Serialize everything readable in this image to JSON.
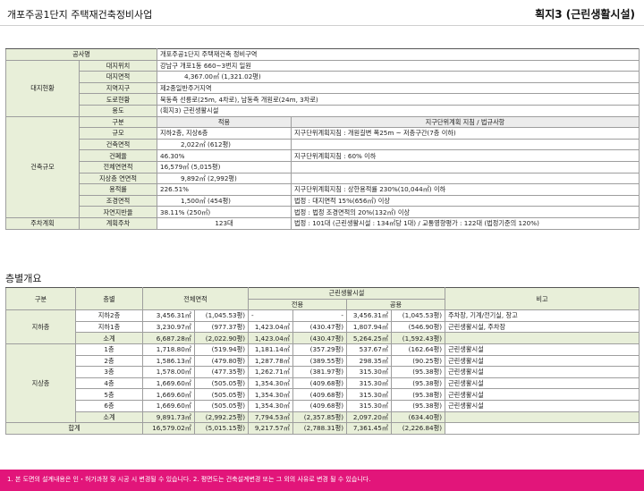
{
  "header": {
    "title": "개포주공1단지 주택재건축정비사업",
    "badge": "획지3 (근린생활시설)"
  },
  "t1": {
    "project_label": "공사명",
    "project_value": "개포주공1단지 주택재건축 정비구역",
    "site_group": "대지현황",
    "site_rows": [
      {
        "label": "대지위치",
        "value": "강남구 개포1동 660~3번지 일원"
      },
      {
        "label": "대지면적",
        "value": "4,367.00㎡ (1,321.02평)"
      },
      {
        "label": "지역지구",
        "value": "제2종일반주거지역"
      },
      {
        "label": "도로현황",
        "value": "북동측 선릉로(25m, 4차로), 남동측 개원로(24m, 3차로)"
      },
      {
        "label": "용도",
        "value": "(획지3) 근린생활시설"
      }
    ],
    "bld_group": "건축규모",
    "col_head": {
      "item": "구분",
      "apply": "적용",
      "rule": "지구단위계획 지침 / 법규사항"
    },
    "bld_rows": [
      {
        "label": "규모",
        "apply": "지하2층, 지상6층",
        "rule": "지구단위계획지침 : 개원길변 폭25m ~ 저층구간(7층 이하)"
      },
      {
        "label": "건축면적",
        "apply": "2,022㎡ (612평)",
        "rule": ""
      },
      {
        "label": "건폐율",
        "apply": "46.30%",
        "rule": "지구단위계획지침 : 60% 이하"
      },
      {
        "label": "전체연면적",
        "apply": "16,579㎡ (5,015평)",
        "rule": ""
      },
      {
        "label": "지상층 연면적",
        "apply": "9,892㎡ (2,992평)",
        "rule": ""
      },
      {
        "label": "용적률",
        "apply": "226.51%",
        "rule": "지구단위계획지침 : 상한용적률 230%(10,044㎡) 이하"
      },
      {
        "label": "조경면적",
        "apply": "1,500㎡ (454평)",
        "rule": "법정 : 대지면적 15%(656㎡) 이상"
      },
      {
        "label": "자연지반율",
        "apply": "38.11% (250㎡)",
        "rule": "법정 : 법정 조경면적의 20%(132㎡) 이상"
      }
    ],
    "parking": {
      "group": "주차계획",
      "label": "계획주차",
      "apply": "123대",
      "rule": "법정 : 101대 (근린생활시설 : 134㎡당 1대)   /  교통영향평가 : 122대 (법정기준의 120%)"
    }
  },
  "t2": {
    "section_title": "층별개요",
    "head": {
      "kind": "구분",
      "floor": "층별",
      "total": "전체면적",
      "nbh": "근린생활시설",
      "private": "전용",
      "common": "공용",
      "note": "비고"
    },
    "basement_group": "지하층",
    "ground_group": "지상층",
    "basement_rows": [
      {
        "floor": "지하2층",
        "t1": "3,456.31㎡",
        "t2": "(1,045.53평)",
        "p1": "-",
        "p2": "-",
        "c1": "3,456.31㎡",
        "c2": "(1,045.53평)",
        "note": "주차장, 기계/전기실, 창고"
      },
      {
        "floor": "지하1층",
        "t1": "3,230.97㎡",
        "t2": "(977.37평)",
        "p1": "1,423.04㎡",
        "p2": "(430.47평)",
        "c1": "1,807.94㎡",
        "c2": "(546.90평)",
        "note": "근린생활시설, 주차장"
      },
      {
        "floor": "소계",
        "t1": "6,687.28㎡",
        "t2": "(2,022.90평)",
        "p1": "1,423.04㎡",
        "p2": "(430.47평)",
        "c1": "5,264.25㎡",
        "c2": "(1,592.43평)",
        "note": ""
      }
    ],
    "ground_rows": [
      {
        "floor": "1층",
        "t1": "1,718.80㎡",
        "t2": "(519.94평)",
        "p1": "1,181.14㎡",
        "p2": "(357.29평)",
        "c1": "537.67㎡",
        "c2": "(162.64평)",
        "note": "근린생활시설"
      },
      {
        "floor": "2층",
        "t1": "1,586.13㎡",
        "t2": "(479.80평)",
        "p1": "1,287.78㎡",
        "p2": "(389.55평)",
        "c1": "298.35㎡",
        "c2": "(90.25평)",
        "note": "근린생활시설"
      },
      {
        "floor": "3층",
        "t1": "1,578.00㎡",
        "t2": "(477.35평)",
        "p1": "1,262.71㎡",
        "p2": "(381.97평)",
        "c1": "315.30㎡",
        "c2": "(95.38평)",
        "note": "근린생활시설"
      },
      {
        "floor": "4층",
        "t1": "1,669.60㎡",
        "t2": "(505.05평)",
        "p1": "1,354.30㎡",
        "p2": "(409.68평)",
        "c1": "315.30㎡",
        "c2": "(95.38평)",
        "note": "근린생활시설"
      },
      {
        "floor": "5층",
        "t1": "1,669.60㎡",
        "t2": "(505.05평)",
        "p1": "1,354.30㎡",
        "p2": "(409.68평)",
        "c1": "315.30㎡",
        "c2": "(95.38평)",
        "note": "근린생활시설"
      },
      {
        "floor": "6층",
        "t1": "1,669.60㎡",
        "t2": "(505.05평)",
        "p1": "1,354.30㎡",
        "p2": "(409.68평)",
        "c1": "315.30㎡",
        "c2": "(95.38평)",
        "note": "근린생활시설"
      },
      {
        "floor": "소계",
        "t1": "9,891.73㎡",
        "t2": "(2,992.25평)",
        "p1": "7,794.53㎡",
        "p2": "(2,357.85평)",
        "c1": "2,097.20㎡",
        "c2": "(634.40평)",
        "note": ""
      }
    ],
    "total": {
      "label": "합계",
      "t1": "16,579.02㎡",
      "t2": "(5,015.15평)",
      "p1": "9,217.57㎡",
      "p2": "(2,788.31평)",
      "c1": "7,361.45㎡",
      "c2": "(2,226.84평)"
    }
  },
  "footer": {
    "note": "1. 본 도면의 설계내용은 인・허가과정 및 시공 시 변경될 수 있습니다. 2. 평면도는 건축설계변경 또는 그 외의 사유로 변경 될 수 있습니다."
  }
}
